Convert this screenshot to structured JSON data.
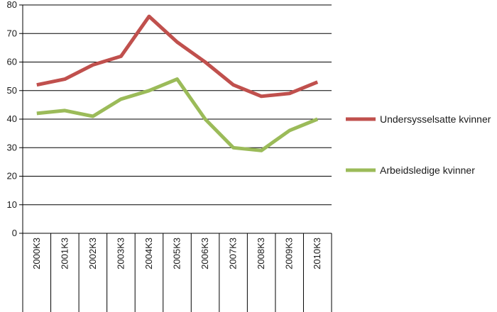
{
  "chart_data": {
    "type": "line",
    "categories": [
      "2000K3",
      "2001K3",
      "2002K3",
      "2003K3",
      "2004K3",
      "2005K3",
      "2006K3",
      "2007K3",
      "2008K3",
      "2009K3",
      "2010K3"
    ],
    "series": [
      {
        "name": "Undersysselsatte kvinner",
        "color": "#c0504d",
        "values": [
          52,
          54,
          59,
          62,
          76,
          67,
          60,
          52,
          48,
          49,
          53
        ]
      },
      {
        "name": "Arbeidsledige kvinner",
        "color": "#9bbb59",
        "values": [
          42,
          43,
          41,
          47,
          50,
          54,
          40,
          30,
          29,
          36,
          40
        ]
      }
    ],
    "ylim": [
      0,
      80
    ],
    "yticks": [
      "0",
      "10",
      "20",
      "30",
      "40",
      "50",
      "60",
      "70",
      "80"
    ],
    "grid": true,
    "legend_position": "right",
    "title": "",
    "xlabel": "",
    "ylabel": ""
  }
}
